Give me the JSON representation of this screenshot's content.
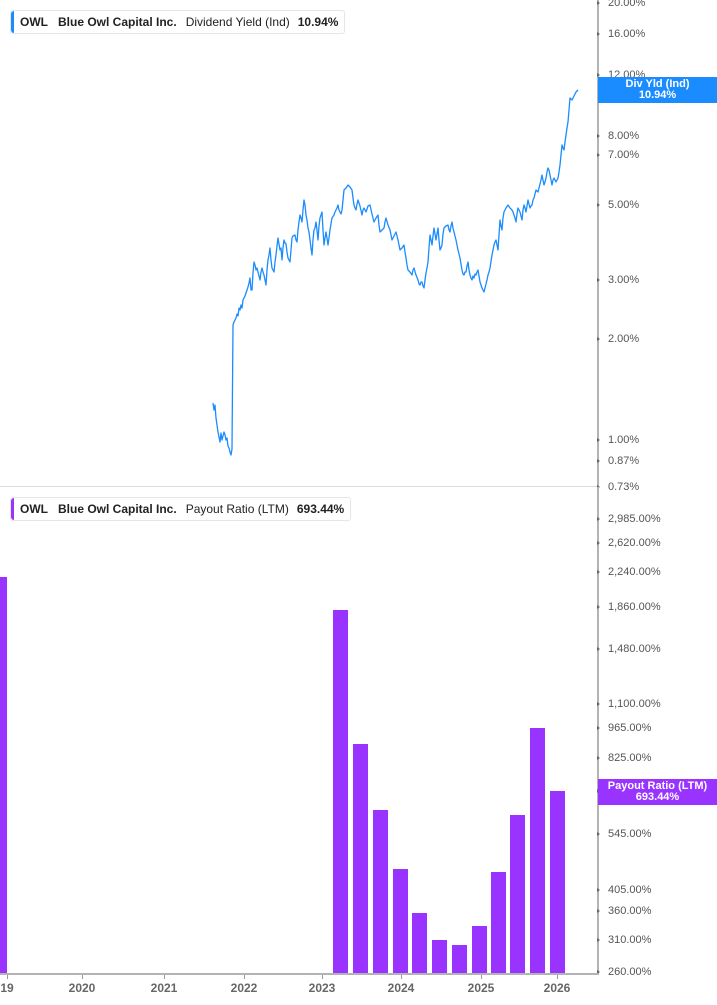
{
  "chart_data": [
    {
      "type": "line",
      "title": "OWL Blue Owl Capital Inc. Dividend Yield (Ind)",
      "series": [
        {
          "name": "Dividend Yield (Ind)",
          "color": "#1a8cff",
          "last_value": "10.94%"
        }
      ],
      "x_range": [
        "2021-09",
        "2026-02"
      ],
      "points_approx": [
        [
          "2021-09",
          1.35
        ],
        [
          "2021-11",
          0.9
        ],
        [
          "2021-11",
          2.3
        ],
        [
          "2022-03",
          3.0
        ],
        [
          "2022-07",
          3.5
        ],
        [
          "2022-10",
          5.0
        ],
        [
          "2023-01",
          4.2
        ],
        [
          "2023-04",
          5.5
        ],
        [
          "2023-07",
          4.8
        ],
        [
          "2023-10",
          4.0
        ],
        [
          "2024-01",
          3.0
        ],
        [
          "2024-04",
          4.3
        ],
        [
          "2024-07",
          3.7
        ],
        [
          "2024-10",
          3.1
        ],
        [
          "2025-01",
          2.85
        ],
        [
          "2025-03",
          4.0
        ],
        [
          "2025-06",
          5.0
        ],
        [
          "2025-09",
          5.7
        ],
        [
          "2025-12",
          8.0
        ],
        [
          "2026-02",
          10.94
        ]
      ],
      "ylabel": "Dividend Yield",
      "yscale": "log",
      "ylim": [
        0.73,
        20.0
      ],
      "yticks": [
        "20.00%",
        "16.00%",
        "12.00%",
        "8.00%",
        "7.00%",
        "5.00%",
        "3.00%",
        "2.00%",
        "1.00%",
        "0.87%",
        "0.73%"
      ],
      "grid": false
    },
    {
      "type": "bar",
      "title": "OWL Blue Owl Capital Inc. Payout Ratio (LTM)",
      "series": [
        {
          "name": "Payout Ratio (LTM)",
          "color": "#9933ff",
          "last_value": "693.44%"
        }
      ],
      "categories": [
        "2019-Q4",
        "2023-Q1",
        "2023-Q2",
        "2023-Q3",
        "2023-Q4",
        "2024-Q1",
        "2024-Q2",
        "2024-Q3",
        "2024-Q4",
        "2025-Q1",
        "2025-Q2",
        "2025-Q3",
        "2025-Q4"
      ],
      "values": [
        2200,
        1900,
        900,
        620,
        455,
        355,
        315,
        305,
        335,
        450,
        605,
        975,
        693.44
      ],
      "ylabel": "Payout Ratio",
      "yscale": "log",
      "ylim": [
        260,
        3200
      ],
      "yticks": [
        "2,985.00%",
        "2,620.00%",
        "2,240.00%",
        "1,860.00%",
        "1,480.00%",
        "1,100.00%",
        "965.00%",
        "825.00%",
        "685.00%",
        "545.00%",
        "405.00%",
        "360.00%",
        "310.00%",
        "260.00%"
      ],
      "grid": false
    }
  ],
  "top_panel": {
    "legend": {
      "ticker": "OWL",
      "company": "Blue Owl Capital Inc.",
      "metric": "Dividend Yield (Ind)",
      "value": "10.94%"
    },
    "flag": {
      "line1": "Div Yld (Ind)",
      "line2": "10.94%"
    },
    "accent": "#1a8cff",
    "yticks": [
      {
        "label": "20.00%",
        "y": -3
      },
      {
        "label": "16.00%",
        "y": 28
      },
      {
        "label": "12.00%",
        "y": 69
      },
      {
        "label": "8.00%",
        "y": 130
      },
      {
        "label": "7.00%",
        "y": 149
      },
      {
        "label": "5.00%",
        "y": 199
      },
      {
        "label": "3.00%",
        "y": 274
      },
      {
        "label": "2.00%",
        "y": 333
      },
      {
        "label": "1.00%",
        "y": 434
      },
      {
        "label": "0.87%",
        "y": 455
      },
      {
        "label": "0.73%",
        "y": 481
      }
    ]
  },
  "bottom_panel": {
    "legend": {
      "ticker": "OWL",
      "company": "Blue Owl Capital Inc.",
      "metric": "Payout Ratio (LTM)",
      "value": "693.44%"
    },
    "flag": {
      "line1": "Payout Ratio (LTM)",
      "line2": "693.44%"
    },
    "accent": "#9933ff",
    "yticks": [
      {
        "label": "2,985.00%",
        "y": 513
      },
      {
        "label": "2,620.00%",
        "y": 537
      },
      {
        "label": "2,240.00%",
        "y": 566
      },
      {
        "label": "1,860.00%",
        "y": 601
      },
      {
        "label": "1,480.00%",
        "y": 643
      },
      {
        "label": "1,100.00%",
        "y": 698
      },
      {
        "label": "965.00%",
        "y": 722
      },
      {
        "label": "825.00%",
        "y": 752
      },
      {
        "label": "685.00%",
        "y": 785
      },
      {
        "label": "545.00%",
        "y": 828
      },
      {
        "label": "405.00%",
        "y": 884
      },
      {
        "label": "360.00%",
        "y": 905
      },
      {
        "label": "310.00%",
        "y": 934
      },
      {
        "label": "260.00%",
        "y": 966
      }
    ]
  },
  "x_axis": {
    "labels": [
      {
        "label": "19",
        "x": 7
      },
      {
        "label": "2020",
        "x": 82
      },
      {
        "label": "2021",
        "x": 164
      },
      {
        "label": "2022",
        "x": 244
      },
      {
        "label": "2023",
        "x": 322
      },
      {
        "label": "2024",
        "x": 401
      },
      {
        "label": "2025",
        "x": 481
      },
      {
        "label": "2026",
        "x": 557
      }
    ]
  }
}
